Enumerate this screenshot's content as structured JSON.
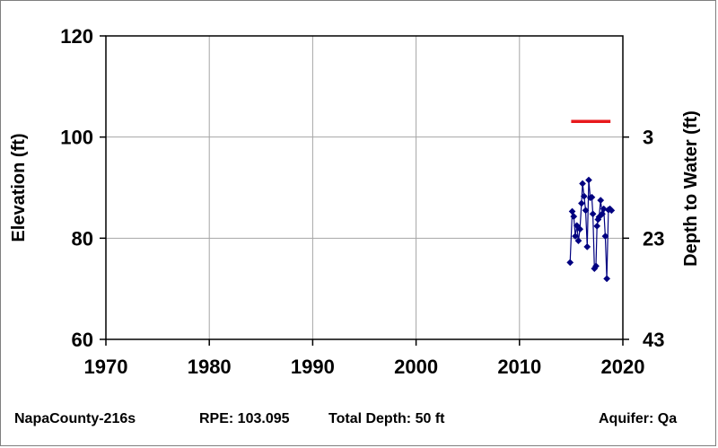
{
  "chart_data": {
    "type": "line",
    "xlabel": "",
    "ylabel": "Elevation (ft)",
    "y2label": "Depth to Water (ft)",
    "xlim": [
      1970,
      2020
    ],
    "ylim": [
      60,
      120
    ],
    "xticks": [
      "1970",
      "1980",
      "1990",
      "2000",
      "2010",
      "2020"
    ],
    "yticks": [
      "60",
      "80",
      "100",
      "120"
    ],
    "y2ticks": [
      "3",
      "23",
      "43"
    ],
    "grid": true,
    "series": [
      {
        "color": "#000080",
        "marker": "diamond",
        "x": [
          2014.9,
          2015.1,
          2015.25,
          2015.4,
          2015.55,
          2015.7,
          2015.85,
          2016.0,
          2016.1,
          2016.25,
          2016.4,
          2016.55,
          2016.7,
          2016.85,
          2017.0,
          2017.1,
          2017.25,
          2017.4,
          2017.5,
          2017.6,
          2017.7,
          2017.85,
          2018.0,
          2018.15,
          2018.3,
          2018.45,
          2018.6,
          2018.75,
          2018.9
        ],
        "y": [
          75.2,
          85.3,
          84.3,
          80.4,
          82.5,
          79.5,
          81.8,
          86.9,
          90.8,
          88.3,
          85.5,
          78.3,
          91.5,
          88.0,
          88.1,
          84.8,
          74.0,
          74.5,
          82.4,
          83.7,
          84.2,
          87.5,
          84.8,
          85.8,
          80.4,
          72.0,
          85.6,
          85.8,
          85.5
        ]
      },
      {
        "color": "#e8191c",
        "marker": "none",
        "x": [
          2015.0,
          2018.8
        ],
        "y": [
          103.1,
          103.1
        ]
      }
    ]
  },
  "footer": {
    "site": "NapaCounty-216s",
    "rpe": "RPE: 103.095",
    "total_depth": "Total Depth: 50 ft",
    "aquifer": "Aquifer: Qa"
  }
}
